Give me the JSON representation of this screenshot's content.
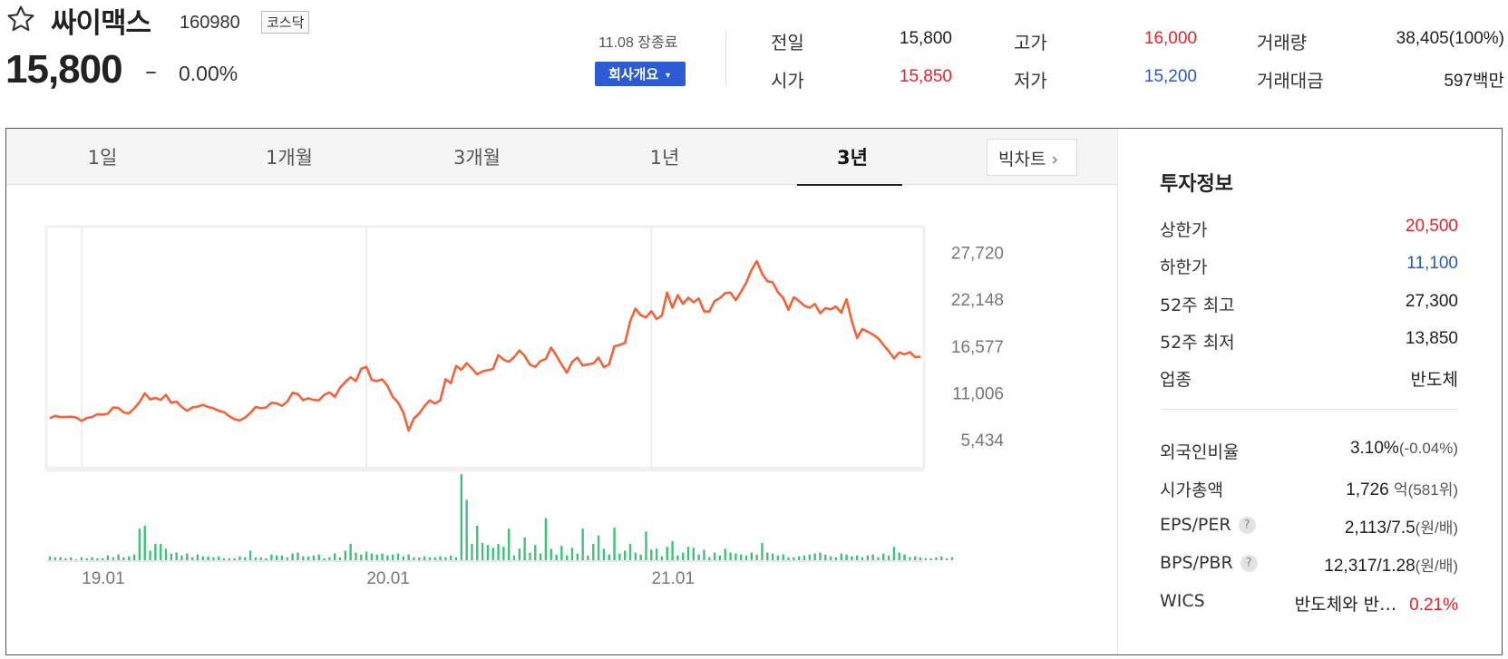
{
  "stock": {
    "name": "싸이맥스",
    "code": "160980",
    "market": "코스닥",
    "price": "15,800",
    "change_symbol": "–",
    "change_rate": "0.00%",
    "close_time": "11.08 장종료",
    "company_button": "회사개요"
  },
  "summary": {
    "prev_label": "전일",
    "prev": "15,800",
    "open_label": "시가",
    "open": "15,850",
    "high_label": "고가",
    "high": "16,000",
    "low_label": "저가",
    "low": "15,200",
    "volume_label": "거래량",
    "volume": "38,405(100%)",
    "amount_label": "거래대금",
    "amount": "597백만"
  },
  "tabs": [
    {
      "label": "1일",
      "active": false
    },
    {
      "label": "1개월",
      "active": false
    },
    {
      "label": "3개월",
      "active": false
    },
    {
      "label": "1년",
      "active": false
    },
    {
      "label": "3년",
      "active": true
    }
  ],
  "bigchart_label": "빅차트",
  "colors": {
    "up": "#e8222b",
    "down": "#2458d2",
    "line": "#f4623a",
    "volume": "#3cc27a",
    "button": "#2c5bd5"
  },
  "chart_data": {
    "type": "line",
    "y_ticks": [
      "27,720",
      "22,148",
      "16,577",
      "11,006",
      "5,434"
    ],
    "y_tick_values": [
      27720,
      22148,
      16577,
      11006,
      5434
    ],
    "ylim": [
      2600,
      30500
    ],
    "x_ticks": [
      "19.01",
      "20.01",
      "21.01"
    ],
    "x_tick_index": [
      6,
      60,
      114
    ],
    "series": [
      {
        "values": [
          7950,
          8250,
          8100,
          8100,
          8150,
          8050,
          7650,
          8000,
          8100,
          8450,
          8400,
          8500,
          9250,
          9200,
          8650,
          8550,
          9150,
          9900,
          10950,
          10200,
          10400,
          10150,
          10750,
          9800,
          9950,
          9300,
          8850,
          9250,
          9350,
          9550,
          9300,
          9150,
          8850,
          8700,
          8200,
          7850,
          7700,
          8050,
          8600,
          9300,
          9150,
          9250,
          9800,
          9750,
          9450,
          9950,
          11000,
          10850,
          10100,
          10350,
          10150,
          10100,
          10750,
          11050,
          10500,
          11600,
          12300,
          12850,
          12400,
          13850,
          14100,
          12550,
          12400,
          12600,
          11800,
          10500,
          9850,
          8650,
          6500,
          7950,
          8550,
          9400,
          10100,
          9700,
          10100,
          12600,
          12150,
          14200,
          13750,
          14550,
          13900,
          13200,
          13550,
          13700,
          13850,
          15500,
          14950,
          14700,
          15250,
          16050,
          15400,
          14350,
          14100,
          14800,
          15050,
          16400,
          15450,
          14350,
          13400,
          14700,
          15200,
          14250,
          14400,
          14500,
          15200,
          14050,
          14400,
          16550,
          16700,
          16950,
          19550,
          21050,
          20250,
          20000,
          20750,
          19800,
          20200,
          22950,
          21150,
          22650,
          21600,
          22350,
          21800,
          22250,
          20700,
          20700,
          21950,
          22300,
          22900,
          22950,
          22050,
          23050,
          24150,
          25650,
          26700,
          25200,
          24300,
          24200,
          23000,
          22300,
          20900,
          22400,
          21950,
          21400,
          21150,
          21600,
          20500,
          21100,
          20950,
          21300,
          20550,
          22150,
          19550,
          17550,
          18600,
          18300,
          17950,
          17500,
          16700,
          15950,
          15100,
          15800,
          15600,
          15850,
          15250,
          15300
        ]
      }
    ],
    "volume": {
      "values": [
        4,
        3,
        3,
        2,
        3,
        1,
        3,
        2,
        3,
        2,
        2,
        5,
        3,
        6,
        3,
        4,
        6,
        33,
        36,
        10,
        17,
        17,
        12,
        7,
        8,
        5,
        7,
        3,
        6,
        4,
        4,
        3,
        4,
        2,
        2,
        2,
        4,
        3,
        10,
        3,
        3,
        2,
        6,
        5,
        5,
        3,
        7,
        8,
        4,
        4,
        5,
        6,
        2,
        3,
        7,
        3,
        10,
        17,
        8,
        6,
        9,
        7,
        6,
        7,
        5,
        6,
        7,
        4,
        6,
        3,
        3,
        4,
        3,
        3,
        4,
        3,
        5,
        3,
        90,
        63,
        17,
        36,
        18,
        16,
        13,
        17,
        14,
        33,
        5,
        12,
        24,
        8,
        16,
        7,
        44,
        12,
        6,
        15,
        5,
        13,
        7,
        33,
        5,
        17,
        26,
        12,
        6,
        34,
        7,
        10,
        17,
        8,
        6,
        30,
        11,
        12,
        4,
        14,
        20,
        5,
        8,
        14,
        13,
        6,
        11,
        3,
        8,
        5,
        12,
        8,
        7,
        6,
        5,
        8,
        6,
        18,
        8,
        7,
        5,
        6,
        3,
        3,
        4,
        5,
        6,
        7,
        8,
        6,
        4,
        3,
        7,
        6,
        4,
        5,
        3,
        5,
        6,
        3,
        7,
        5,
        14,
        8,
        6,
        3,
        4,
        3,
        2,
        2,
        3,
        4,
        2,
        3
      ]
    }
  },
  "invest": {
    "title": "투자정보",
    "upper_label": "상한가",
    "upper": "20,500",
    "lower_label": "하한가",
    "lower": "11,100",
    "high52_label": "52주 최고",
    "high52": "27,300",
    "low52_label": "52주 최저",
    "low52": "13,850",
    "sector_label": "업종",
    "sector": "반도체",
    "foreign_label": "외국인비율",
    "foreign": "3.10%",
    "foreign_change": "(-0.04%)",
    "cap_label": "시가총액",
    "cap": "1,726",
    "cap_unit": "억(581위)",
    "eps_label": "EPS/PER",
    "eps": "2,113/7.5",
    "eps_unit": "(원/배)",
    "bps_label": "BPS/PBR",
    "bps": "12,317/1.28",
    "bps_unit": "(원/배)",
    "wics_label": "WICS",
    "wics": "반도체와 반…",
    "wics_rate": "0.21%",
    "help_mark": "?"
  }
}
